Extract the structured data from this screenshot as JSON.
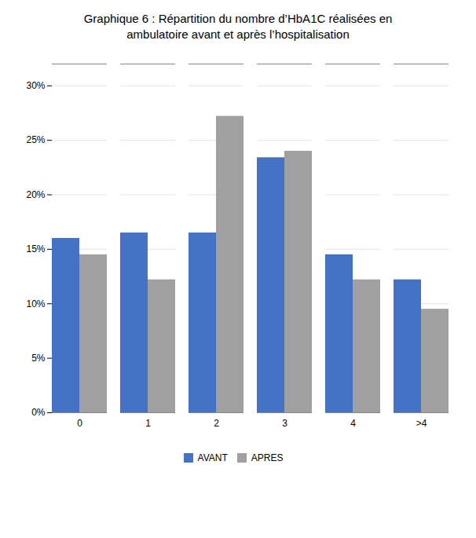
{
  "chart_data": {
    "type": "bar",
    "title": "Graphique 6 : Répartition du nombre d’HbA1C réalisées en\nambulatoire avant et après l’hospitalisation",
    "categories": [
      "0",
      "1",
      "2",
      "3",
      "4",
      ">4"
    ],
    "series": [
      {
        "name": "AVANT",
        "color": "#4472C4",
        "values": [
          0.16,
          0.165,
          0.165,
          0.234,
          0.145,
          0.122
        ]
      },
      {
        "name": "APRES",
        "color": "#A0A0A0",
        "values": [
          0.145,
          0.122,
          0.272,
          0.24,
          0.122,
          0.095
        ]
      }
    ],
    "ylim": [
      0,
      0.32
    ],
    "yticks": [
      {
        "value": 0.0,
        "label": "0%"
      },
      {
        "value": 0.05,
        "label": "5%"
      },
      {
        "value": 0.1,
        "label": "10%"
      },
      {
        "value": 0.15,
        "label": "15%"
      },
      {
        "value": 0.2,
        "label": "20%"
      },
      {
        "value": 0.25,
        "label": "25%"
      },
      {
        "value": 0.3,
        "label": "30%"
      }
    ],
    "grid": true,
    "legend": "bottom"
  }
}
